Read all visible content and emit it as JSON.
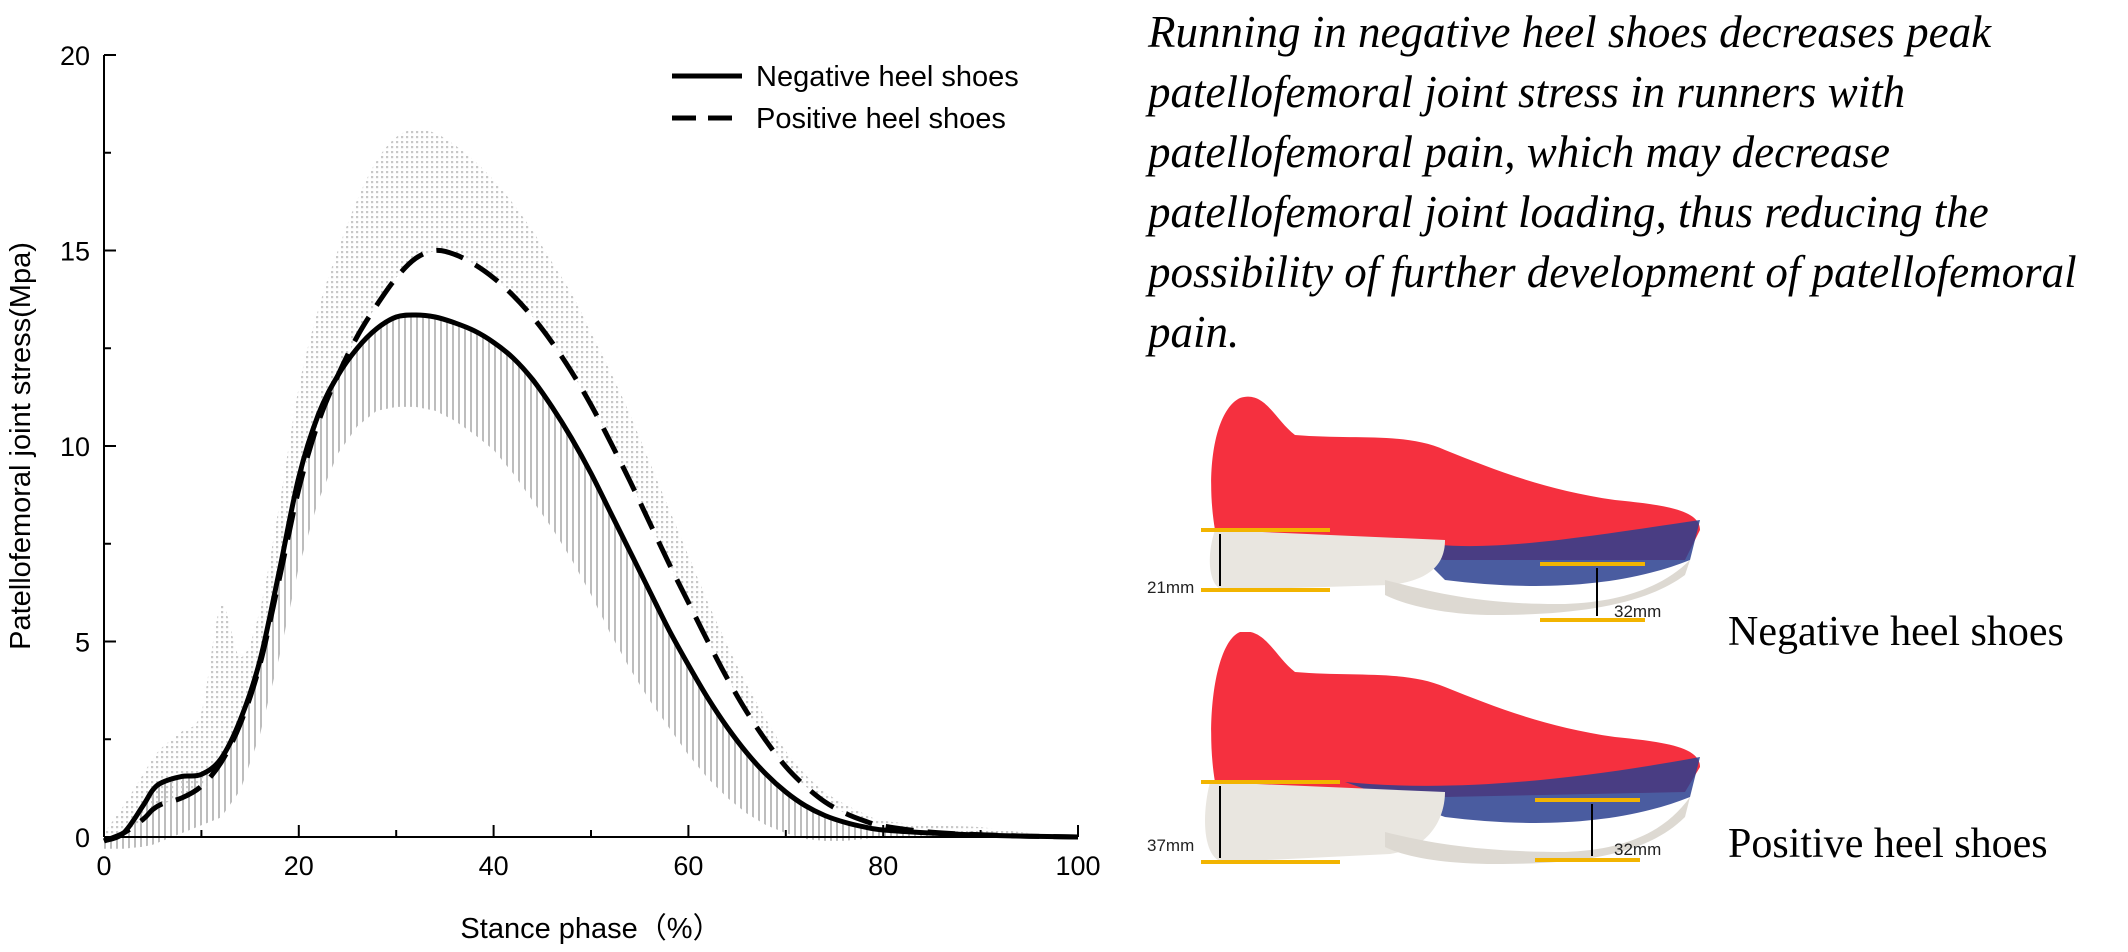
{
  "chart_data": {
    "type": "line",
    "xlabel": "Stance phase（%）",
    "ylabel": "Patellofemoral joint stress(Mpa)",
    "xlim": [
      0,
      100
    ],
    "ylim": [
      0,
      20
    ],
    "x_ticks": [
      "0",
      "20",
      "40",
      "60",
      "80",
      "100"
    ],
    "y_ticks": [
      "0",
      "5",
      "10",
      "15",
      "20"
    ],
    "grid": false,
    "legend_position": "top-right",
    "x": [
      0,
      2,
      4,
      5,
      6,
      8,
      10,
      12,
      14,
      16,
      18,
      20,
      22,
      24,
      26,
      28,
      30,
      32,
      34,
      36,
      38,
      40,
      42,
      44,
      46,
      48,
      50,
      52,
      54,
      56,
      58,
      60,
      62,
      64,
      66,
      68,
      70,
      72,
      74,
      76,
      78,
      80,
      85,
      90,
      95,
      100
    ],
    "series": [
      {
        "name": "Negative heel shoes",
        "style": "solid",
        "values": [
          -0.1,
          0.1,
          0.8,
          1.2,
          1.4,
          1.55,
          1.6,
          2.0,
          3.0,
          4.5,
          6.8,
          9.2,
          10.8,
          11.8,
          12.5,
          13.0,
          13.3,
          13.35,
          13.3,
          13.15,
          12.95,
          12.65,
          12.25,
          11.7,
          11.0,
          10.2,
          9.3,
          8.3,
          7.3,
          6.3,
          5.3,
          4.4,
          3.55,
          2.8,
          2.15,
          1.6,
          1.15,
          0.8,
          0.55,
          0.38,
          0.26,
          0.18,
          0.1,
          0.05,
          0.02,
          0.0
        ],
        "sd_upper": [
          0.2,
          0.8,
          1.6,
          2.0,
          2.3,
          2.6,
          3.0,
          3.6,
          4.8,
          6.6,
          9.0,
          11.5,
          12.8,
          13.7,
          14.3,
          14.6,
          14.75,
          14.8,
          14.7,
          14.5,
          14.2,
          13.85,
          13.4,
          12.8,
          12.1,
          11.3,
          10.4,
          9.4,
          8.4,
          7.35,
          6.3,
          5.35,
          4.4,
          3.6,
          2.85,
          2.2,
          1.65,
          1.2,
          0.9,
          0.65,
          0.45,
          0.3,
          0.18,
          0.1,
          0.05,
          0.02
        ],
        "sd_lower": [
          -0.3,
          -0.3,
          -0.25,
          -0.2,
          -0.1,
          0.1,
          0.3,
          0.5,
          1.2,
          2.6,
          4.6,
          6.9,
          8.6,
          9.8,
          10.5,
          10.9,
          11.0,
          11.0,
          10.9,
          10.65,
          10.3,
          9.9,
          9.3,
          8.6,
          7.9,
          7.1,
          6.2,
          5.2,
          4.3,
          3.5,
          2.8,
          2.1,
          1.5,
          1.0,
          0.6,
          0.3,
          0.1,
          -0.05,
          -0.1,
          -0.1,
          -0.05,
          0.0,
          0.0,
          0.0,
          0.0,
          0.0
        ]
      },
      {
        "name": "Positive heel shoes",
        "style": "dashed",
        "values": [
          -0.1,
          0.1,
          0.45,
          0.7,
          0.85,
          1.0,
          1.3,
          1.9,
          2.9,
          4.4,
          6.6,
          8.9,
          10.6,
          11.8,
          12.8,
          13.6,
          14.3,
          14.8,
          15.0,
          14.9,
          14.65,
          14.3,
          13.85,
          13.3,
          12.65,
          11.9,
          11.05,
          10.1,
          9.1,
          8.05,
          7.0,
          6.0,
          5.0,
          4.05,
          3.2,
          2.45,
          1.8,
          1.3,
          0.9,
          0.62,
          0.42,
          0.28,
          0.12,
          0.06,
          0.02,
          0.0
        ],
        "sd_upper": [
          0.1,
          0.8,
          1.6,
          2.0,
          2.3,
          2.7,
          3.2,
          5.9,
          4.6,
          5.8,
          8.5,
          11.5,
          13.5,
          15.0,
          16.3,
          17.3,
          17.9,
          18.1,
          18.0,
          17.7,
          17.3,
          16.8,
          16.2,
          15.5,
          14.7,
          13.9,
          12.9,
          11.9,
          10.8,
          9.6,
          8.4,
          7.2,
          6.0,
          4.9,
          3.9,
          3.0,
          2.2,
          1.6,
          1.15,
          0.85,
          0.6,
          0.42,
          0.3,
          0.25,
          0.1,
          0.0
        ]
      }
    ]
  },
  "caption": "Running in negative heel shoes decreases peak patellofemoral joint stress in runners with patellofemoral pain, which may decrease patellofemoral joint loading, thus reducing the possibility of further development of patellofemoral pain.",
  "shoes": {
    "negative": {
      "label": "Negative heel shoes",
      "heel": "21mm",
      "forefoot": "32mm"
    },
    "positive": {
      "label": "Positive heel shoes",
      "heel": "37mm",
      "forefoot": "32mm"
    }
  },
  "colors": {
    "shoe_upper": "#f5303f",
    "sole": "#e9e6e0",
    "stripe": "#2a3f8f",
    "marker": "#f2b400",
    "sd_fill": "#bdbdbd"
  }
}
